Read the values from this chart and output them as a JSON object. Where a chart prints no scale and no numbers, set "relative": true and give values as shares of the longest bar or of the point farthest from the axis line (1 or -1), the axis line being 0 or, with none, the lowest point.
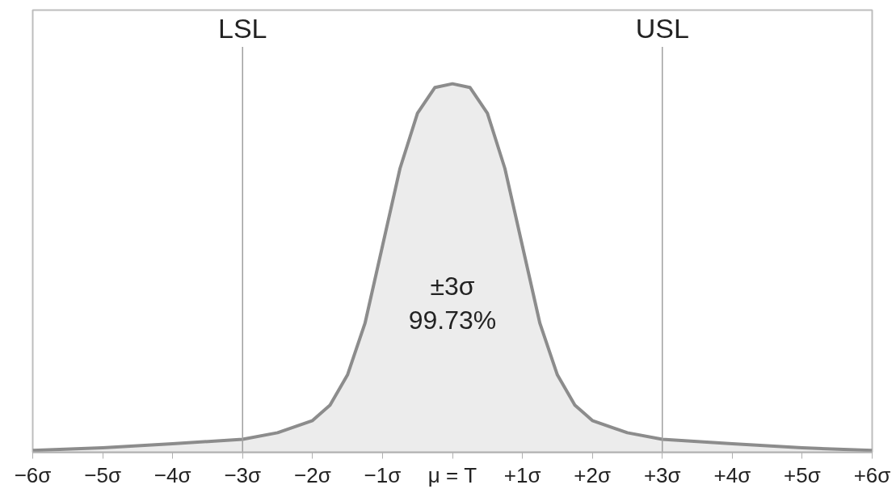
{
  "chart_data": {
    "type": "area",
    "relative": true,
    "x": [
      -6,
      -5,
      -4,
      -3,
      -2.5,
      -2,
      -1.75,
      -1.5,
      -1.25,
      -1,
      -0.75,
      -0.5,
      -0.25,
      0,
      0.25,
      0.5,
      0.75,
      1,
      1.25,
      1.5,
      1.75,
      2,
      2.5,
      3,
      4,
      5,
      6
    ],
    "series": [
      {
        "color": "#8c8c8c",
        "values": [
          0.005,
          0.012,
          0.023,
          0.035,
          0.053,
          0.086,
          0.128,
          0.21,
          0.35,
          0.56,
          0.77,
          0.92,
          0.99,
          1,
          0.99,
          0.92,
          0.77,
          0.56,
          0.35,
          0.21,
          0.128,
          0.086,
          0.053,
          0.035,
          0.023,
          0.012,
          0.005
        ]
      }
    ],
    "xlim": [
      -6,
      6
    ],
    "xticks": [
      {
        "value": -6,
        "label": "−6σ"
      },
      {
        "value": -5,
        "label": "−5σ"
      },
      {
        "value": -4,
        "label": "−4σ"
      },
      {
        "value": -3,
        "label": "−3σ"
      },
      {
        "value": -2,
        "label": "−2σ"
      },
      {
        "value": -1,
        "label": "−1σ"
      },
      {
        "value": 0,
        "label": "μ = T"
      },
      {
        "value": 1,
        "label": "+1σ"
      },
      {
        "value": 2,
        "label": "+2σ"
      },
      {
        "value": 3,
        "label": "+3σ"
      },
      {
        "value": 4,
        "label": "+4σ"
      },
      {
        "value": 5,
        "label": "+5σ"
      },
      {
        "value": 6,
        "label": "+6σ"
      }
    ],
    "ref_lines": [
      {
        "axis": "x",
        "value": -3,
        "label": "LSL",
        "color": "#a0a0a0"
      },
      {
        "axis": "x",
        "value": 3,
        "label": "USL",
        "color": "#a0a0a0"
      }
    ],
    "annotations": [
      "±3σ",
      "99.73%"
    ],
    "grid": false
  }
}
